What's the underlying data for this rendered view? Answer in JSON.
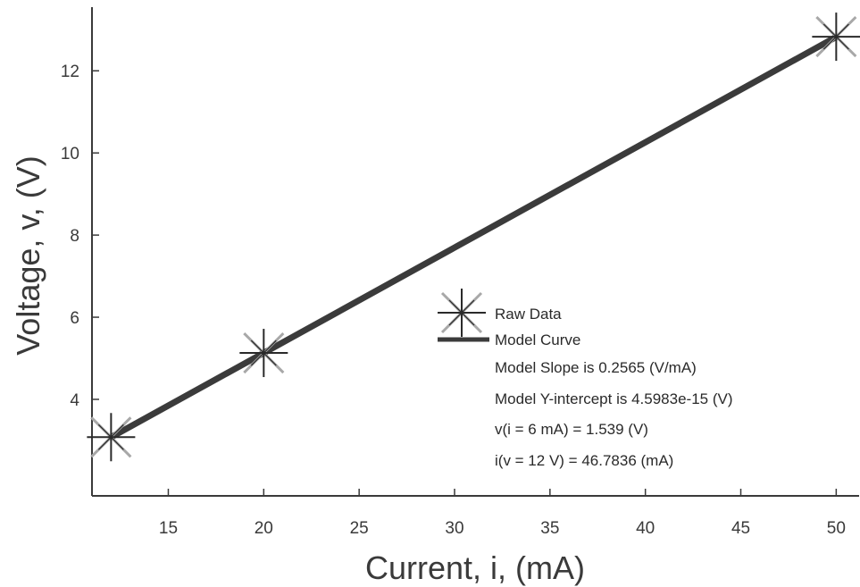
{
  "chart_data": {
    "type": "line",
    "xlabel": "Current, i, (mA)",
    "ylabel": "Voltage, v, (V)",
    "xlim": [
      11,
      51.2
    ],
    "ylim": [
      1.65,
      13.55
    ],
    "x_ticks": [
      15,
      20,
      25,
      30,
      35,
      40,
      45,
      50
    ],
    "y_ticks": [
      4,
      6,
      8,
      10,
      12
    ],
    "grid": false,
    "series": [
      {
        "name": "Raw Data",
        "kind": "marker",
        "marker": "star",
        "x": [
          12,
          20,
          50
        ],
        "y": [
          3.08,
          5.13,
          12.83
        ]
      },
      {
        "name": "Model Curve",
        "kind": "line",
        "x": [
          12,
          50
        ],
        "y": [
          3.078,
          12.825
        ]
      }
    ],
    "legend": {
      "placement": "center-right",
      "annotations": [
        "Model Slope is 0.2565 (V/mA)",
        "Model Y-intercept is 4.5983e-15 (V)",
        "v(i = 6 mA) = 1.539 (V)",
        "i(v = 12 V) = 46.7836 (mA)"
      ]
    },
    "colors": {
      "line": "#3b3b3b",
      "marker_dark": "#2a2a2a",
      "marker_light": "#a8a8a8",
      "axis": "#3a3a3a"
    }
  }
}
